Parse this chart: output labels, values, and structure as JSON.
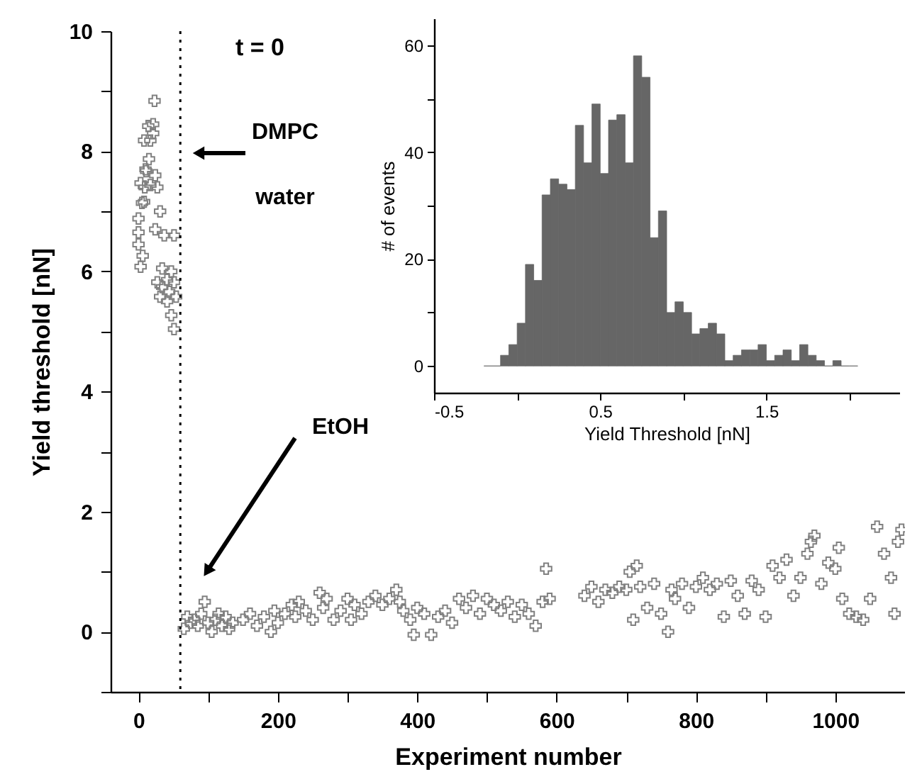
{
  "chart_data": [
    {
      "type": "scatter",
      "xlabel": "Experiment number",
      "ylabel": "Yield threshold [nN]",
      "marker": "cross",
      "xlim": [
        -40,
        1100
      ],
      "xticks": [
        0,
        {
          "value": 100,
          "label": null
        },
        200,
        {
          "value": 300,
          "label": null
        },
        400,
        {
          "value": 500,
          "label": null
        },
        600,
        {
          "value": 700,
          "label": null
        },
        800,
        {
          "value": 900,
          "label": null
        },
        1000,
        {
          "value": 1100,
          "label": null
        }
      ],
      "ylim": [
        -1,
        10
      ],
      "yticks": [
        {
          "value": -1,
          "label": null
        },
        0,
        {
          "value": 1,
          "label": null
        },
        2,
        {
          "value": 3,
          "label": null
        },
        4,
        {
          "value": 5,
          "label": null
        },
        6,
        {
          "value": 7,
          "label": null
        },
        8,
        {
          "value": 9,
          "label": null
        },
        10
      ],
      "ref_lines": [
        {
          "axis": "x",
          "value": 60,
          "line_style": "dotted",
          "color": "#000000"
        }
      ],
      "annotations": [
        "t = 0",
        "DMPC",
        "water",
        "EtOH"
      ],
      "series": [
        {
          "color": "#808080",
          "x": [
            3,
            6,
            0,
            0,
            5,
            3,
            10,
            15,
            8,
            14,
            21,
            23,
            21,
            17,
            11,
            17,
            9,
            27,
            24,
            8,
            0,
            24,
            31,
            37,
            51,
            34,
            27,
            34,
            41,
            44,
            47,
            51,
            54,
            47,
            51,
            31,
            41,
            65,
            70,
            75,
            80,
            85,
            90,
            95,
            100,
            105,
            110,
            115,
            120,
            125,
            130,
            135,
            150,
            160,
            170,
            180,
            190,
            195,
            200,
            210,
            220,
            225,
            230,
            240,
            250,
            260,
            265,
            270,
            280,
            290,
            300,
            305,
            310,
            320,
            330,
            340,
            350,
            360,
            370,
            375,
            380,
            390,
            395,
            400,
            410,
            420,
            430,
            440,
            450,
            460,
            470,
            480,
            490,
            500,
            510,
            520,
            530,
            540,
            550,
            560,
            570,
            580,
            585,
            590,
            640,
            650,
            660,
            670,
            680,
            690,
            700,
            705,
            710,
            715,
            720,
            730,
            740,
            750,
            760,
            765,
            770,
            780,
            790,
            800,
            810,
            820,
            830,
            840,
            850,
            860,
            870,
            880,
            890,
            900,
            910,
            920,
            930,
            940,
            950,
            960,
            965,
            970,
            980,
            990,
            1000,
            1005,
            1010,
            1020,
            1030,
            1040,
            1050,
            1060,
            1070,
            1080,
            1085,
            1090,
            1095
          ],
          "values": [
            6.08,
            6.26,
            6.65,
            6.88,
            7.14,
            7.47,
            7.7,
            7.87,
            8.18,
            8.42,
            8.45,
            8.84,
            8.3,
            8.18,
            7.67,
            7.44,
            7.4,
            7.4,
            7.6,
            7.16,
            6.45,
            6.7,
            7.0,
            6.6,
            6.6,
            6.05,
            5.82,
            5.74,
            5.86,
            5.66,
            6.0,
            5.82,
            5.58,
            5.27,
            5.04,
            5.58,
            5.5,
            0.05,
            0.25,
            0.15,
            0.2,
            0.1,
            0.3,
            0.5,
            0.15,
            0.0,
            0.2,
            0.3,
            0.1,
            0.25,
            0.05,
            0.15,
            0.2,
            0.3,
            0.1,
            0.25,
            0.0,
            0.35,
            0.15,
            0.3,
            0.45,
            0.25,
            0.5,
            0.35,
            0.2,
            0.65,
            0.4,
            0.55,
            0.2,
            0.35,
            0.55,
            0.2,
            0.45,
            0.3,
            0.5,
            0.6,
            0.45,
            0.55,
            0.7,
            0.5,
            0.35,
            0.2,
            -0.05,
            0.4,
            0.3,
            -0.05,
            0.25,
            0.35,
            0.15,
            0.55,
            0.4,
            0.6,
            0.3,
            0.55,
            0.45,
            0.35,
            0.5,
            0.25,
            0.45,
            0.3,
            0.1,
            0.5,
            1.05,
            0.55,
            0.6,
            0.75,
            0.5,
            0.7,
            0.65,
            0.75,
            0.7,
            1.0,
            0.2,
            1.1,
            0.75,
            0.4,
            0.8,
            0.3,
            0.0,
            0.7,
            0.55,
            0.8,
            0.4,
            0.75,
            0.9,
            0.7,
            0.8,
            0.25,
            0.85,
            0.6,
            0.3,
            0.85,
            0.7,
            0.25,
            1.1,
            0.9,
            1.2,
            0.6,
            0.9,
            1.3,
            1.5,
            1.6,
            0.8,
            1.15,
            1.05,
            1.4,
            0.55,
            0.3,
            0.25,
            0.2,
            0.55,
            1.75,
            1.3,
            0.9,
            0.3,
            1.5,
            1.7
          ]
        }
      ]
    },
    {
      "type": "histogram",
      "xlabel": "Yield Threshold [nN]",
      "ylabel": "# of events",
      "xlim": [
        -0.5,
        2.3
      ],
      "xticks": [
        -0.5,
        {
          "value": 0,
          "label": null
        },
        0.5,
        {
          "value": 1,
          "label": null
        },
        1.5,
        {
          "value": 2,
          "label": null
        }
      ],
      "ylim": [
        -5,
        65
      ],
      "yticks": [
        0,
        {
          "value": 10,
          "label": null
        },
        20,
        {
          "value": 30,
          "label": null
        },
        40,
        {
          "value": 50,
          "label": null
        },
        60
      ],
      "color": "#666666",
      "bins": [
        -0.2,
        -0.15,
        -0.1,
        -0.05,
        0,
        0.05,
        0.1,
        0.15,
        0.2,
        0.25,
        0.3,
        0.35,
        0.4,
        0.45,
        0.5,
        0.55,
        0.6,
        0.65,
        0.7,
        0.75,
        0.8,
        0.85,
        0.9,
        0.95,
        1.0,
        1.05,
        1.1,
        1.15,
        1.2,
        1.25,
        1.3,
        1.35,
        1.4,
        1.45,
        1.5,
        1.55,
        1.6,
        1.65,
        1.7,
        1.75,
        1.8,
        1.85,
        1.9,
        1.95,
        2.0,
        2.05
      ],
      "values": [
        0,
        0,
        2,
        4,
        8,
        19,
        16,
        32,
        35,
        34,
        33,
        45,
        38,
        49,
        36,
        46,
        47,
        38,
        58,
        54,
        24,
        29,
        10,
        12,
        10,
        6,
        7,
        8,
        6,
        1,
        2,
        3,
        3,
        4,
        1,
        2,
        3,
        1,
        4,
        2,
        1,
        0,
        1,
        0,
        0
      ]
    }
  ]
}
